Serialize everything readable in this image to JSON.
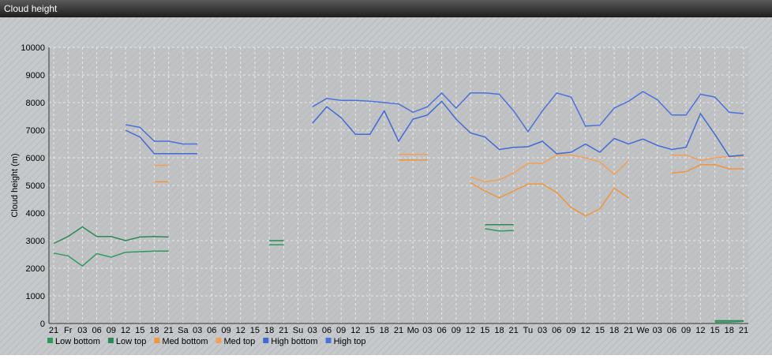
{
  "chart_data": {
    "type": "line",
    "title": "Cloud height",
    "y_label": "Cloud height (m)",
    "categories": [
      "21",
      "Fr",
      "03",
      "06",
      "09",
      "12",
      "15",
      "18",
      "21",
      "Sa",
      "03",
      "06",
      "09",
      "12",
      "15",
      "18",
      "21",
      "Su",
      "03",
      "06",
      "09",
      "12",
      "15",
      "18",
      "21",
      "Mo",
      "03",
      "06",
      "09",
      "12",
      "15",
      "18",
      "21",
      "Tu",
      "03",
      "06",
      "09",
      "12",
      "15",
      "18",
      "21",
      "We",
      "03",
      "06",
      "09",
      "12",
      "15",
      "18",
      "21"
    ],
    "ylim": [
      0,
      10000
    ],
    "yticks": [
      0,
      1000,
      2000,
      3000,
      4000,
      5000,
      6000,
      7000,
      8000,
      9000,
      10000
    ],
    "grid": true,
    "series": [
      {
        "name": "Low bottom",
        "color": "#2f9a5e",
        "values": [
          2550,
          2450,
          2080,
          2530,
          2400,
          2580,
          2600,
          2620,
          2620,
          null,
          null,
          null,
          null,
          null,
          null,
          2850,
          2850,
          null,
          null,
          null,
          null,
          null,
          null,
          null,
          null,
          null,
          null,
          null,
          null,
          null,
          3430,
          3350,
          3370,
          null,
          null,
          null,
          null,
          null,
          null,
          null,
          null,
          null,
          null,
          null,
          null,
          null,
          50,
          50,
          80
        ]
      },
      {
        "name": "Low top",
        "color": "#2a8a56",
        "values": [
          2900,
          3150,
          3500,
          3150,
          3150,
          3000,
          3130,
          3150,
          3130,
          null,
          null,
          null,
          null,
          null,
          null,
          3000,
          3000,
          null,
          null,
          null,
          null,
          null,
          null,
          null,
          null,
          null,
          null,
          null,
          null,
          null,
          3580,
          3580,
          3580,
          null,
          null,
          null,
          null,
          null,
          null,
          null,
          null,
          null,
          null,
          null,
          null,
          null,
          100,
          100,
          100
        ]
      },
      {
        "name": "Med bottom",
        "color": "#f0953a",
        "values": [
          null,
          null,
          null,
          null,
          null,
          null,
          null,
          5130,
          5130,
          null,
          null,
          null,
          null,
          null,
          null,
          null,
          null,
          null,
          null,
          null,
          null,
          null,
          null,
          null,
          5920,
          5920,
          5920,
          null,
          null,
          5100,
          4800,
          4550,
          4800,
          5050,
          5050,
          4750,
          4200,
          3900,
          4150,
          4900,
          4550,
          null,
          null,
          5450,
          5500,
          5750,
          5750,
          5600,
          5600
        ]
      },
      {
        "name": "Med top",
        "color": "#f2a055",
        "values": [
          null,
          null,
          null,
          null,
          null,
          null,
          null,
          5730,
          5730,
          null,
          null,
          null,
          null,
          null,
          null,
          null,
          null,
          null,
          null,
          null,
          null,
          null,
          null,
          null,
          6120,
          6120,
          6120,
          null,
          null,
          5300,
          5130,
          5200,
          5450,
          5800,
          5800,
          6100,
          6100,
          6000,
          5850,
          5400,
          5900,
          null,
          null,
          6100,
          6100,
          5900,
          6000,
          6050,
          6050
        ]
      },
      {
        "name": "High bottom",
        "color": "#3f6ad8",
        "values": [
          null,
          null,
          null,
          null,
          null,
          7000,
          6750,
          6150,
          6150,
          6150,
          6150,
          null,
          null,
          null,
          null,
          null,
          null,
          null,
          7250,
          7850,
          7450,
          6850,
          6850,
          7700,
          6600,
          7400,
          7550,
          8050,
          7400,
          6900,
          6750,
          6300,
          6380,
          6400,
          6600,
          6150,
          6200,
          6500,
          6200,
          6700,
          6500,
          6680,
          6450,
          6300,
          6380,
          7600,
          6850,
          6050,
          6100
        ]
      },
      {
        "name": "High top",
        "color": "#4a72dc",
        "values": [
          null,
          null,
          null,
          null,
          null,
          7200,
          7100,
          6600,
          6600,
          6500,
          6500,
          null,
          null,
          null,
          null,
          null,
          null,
          null,
          7850,
          8150,
          8080,
          8080,
          8050,
          8000,
          7950,
          7650,
          7850,
          8350,
          7800,
          8350,
          8350,
          8300,
          7700,
          6950,
          7700,
          8350,
          8200,
          7150,
          7180,
          7800,
          8050,
          8400,
          8100,
          7550,
          7550,
          8300,
          8200,
          7650,
          7600
        ]
      }
    ]
  }
}
